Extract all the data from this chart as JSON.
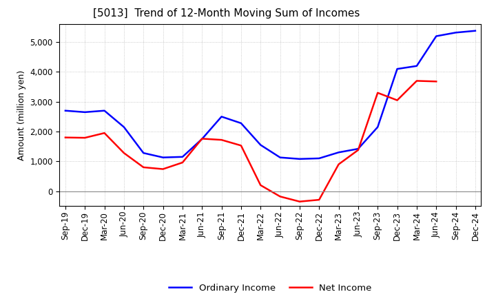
{
  "title": "[5013]  Trend of 12-Month Moving Sum of Incomes",
  "ylabel": "Amount (million yen)",
  "background_color": "#ffffff",
  "plot_background": "#ffffff",
  "x_labels": [
    "Sep-19",
    "Dec-19",
    "Mar-20",
    "Jun-20",
    "Sep-20",
    "Dec-20",
    "Mar-21",
    "Jun-21",
    "Sep-21",
    "Dec-21",
    "Mar-22",
    "Jun-22",
    "Sep-22",
    "Dec-22",
    "Mar-23",
    "Jun-23",
    "Sep-23",
    "Dec-23",
    "Mar-24",
    "Jun-24",
    "Sep-24",
    "Dec-24"
  ],
  "ordinary_income": [
    2700,
    2650,
    2700,
    2150,
    1280,
    1130,
    1150,
    1750,
    2500,
    2280,
    1550,
    1130,
    1080,
    1100,
    1300,
    1420,
    2150,
    4100,
    4200,
    5200,
    5320,
    5380
  ],
  "net_income": [
    1800,
    1790,
    1950,
    1280,
    800,
    740,
    960,
    1760,
    1720,
    1530,
    200,
    -180,
    -350,
    -290,
    900,
    1380,
    3300,
    3050,
    3700,
    3680,
    null,
    null
  ],
  "ordinary_income_color": "#0000ff",
  "net_income_color": "#ff0000",
  "ylim_min": -500,
  "ylim_max": 5600,
  "yticks": [
    0,
    1000,
    2000,
    3000,
    4000,
    5000
  ],
  "legend_labels": [
    "Ordinary Income",
    "Net Income"
  ],
  "line_width": 1.8,
  "title_fontsize": 11,
  "axis_fontsize": 9,
  "tick_fontsize": 8.5,
  "grid_color": "#bbbbbb",
  "zero_line_color": "#888888"
}
